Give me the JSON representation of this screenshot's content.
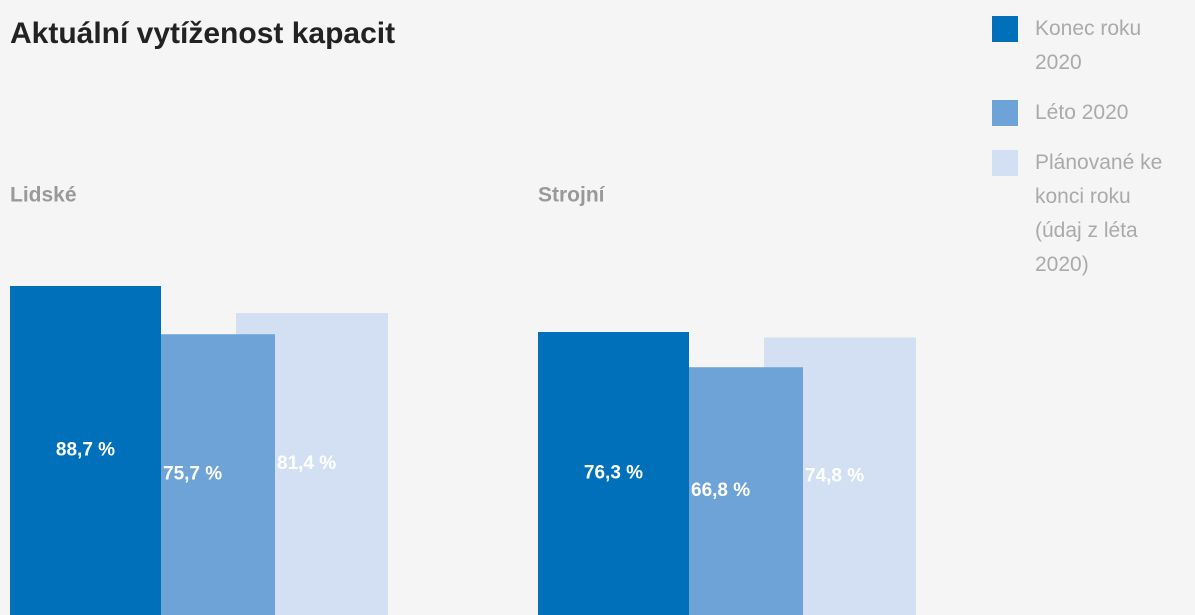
{
  "chart_data": {
    "type": "bar",
    "title": "Aktuální vytíženost kapacit",
    "categories": [
      "Lidské",
      "Strojní"
    ],
    "series": [
      {
        "name": "Konec roku 2020",
        "color": "#0070ba",
        "values": [
          88.7,
          76.3
        ],
        "value_labels": [
          "88,7 %",
          "76,3 %"
        ]
      },
      {
        "name": "Léto 2020",
        "color": "#6ea3d8",
        "values": [
          75.7,
          66.8
        ],
        "value_labels": [
          "75,7 %",
          "66,8 %"
        ]
      },
      {
        "name": "Plánované ke konci roku (údaj z léta 2020)",
        "color": "#d3e0f4",
        "values": [
          81.4,
          74.8
        ],
        "value_labels": [
          "81,4 %",
          "74,8 %"
        ]
      }
    ],
    "legend": "right"
  }
}
